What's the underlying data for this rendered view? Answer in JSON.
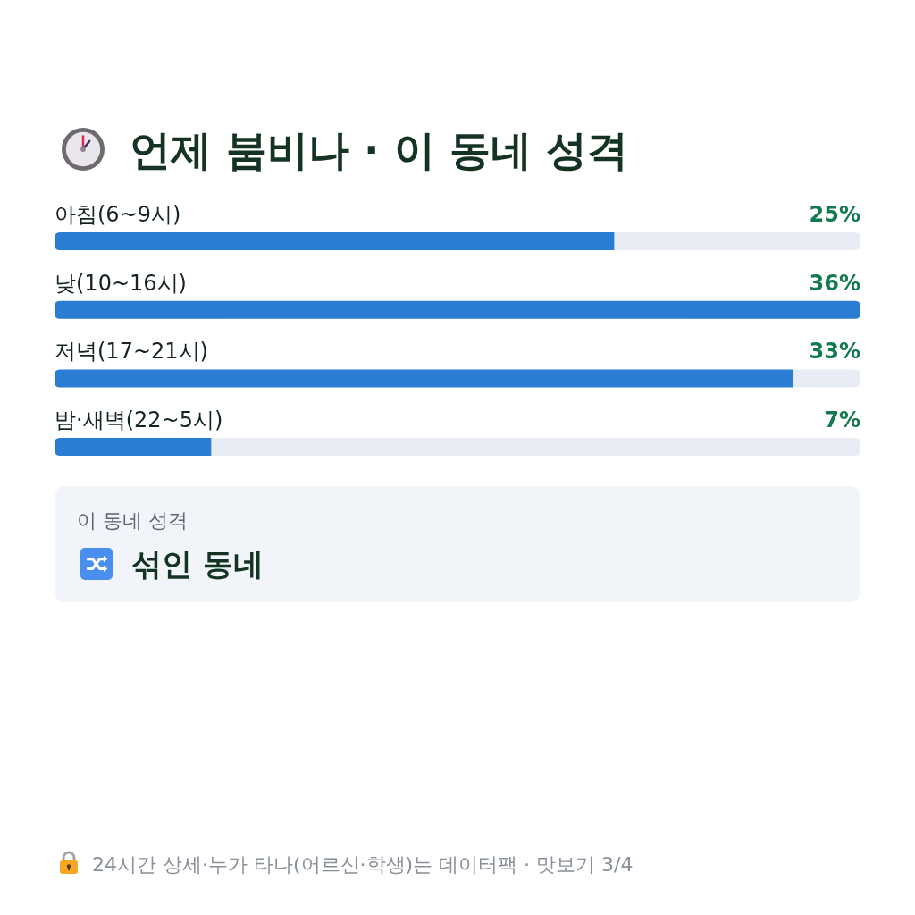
{
  "chart_data": [
    {
      "type": "bar",
      "orientation": "horizontal",
      "title": "언제 붐비나 · 이 동네 성격",
      "categories": [
        "아침(6~9시)",
        "낮(10~16시)",
        "저녁(17~21시)",
        "밤·새벽(22~5시)"
      ],
      "values": [
        25,
        36,
        33,
        7
      ],
      "value_labels": [
        "25%",
        "36%",
        "33%",
        "7%"
      ],
      "color": "#2b7cd3",
      "annotations": [
        "24시간 상세·누가 타나(어르신·학생)는 데이터팩 · 맛보기 3/4"
      ]
    },
    {
      "type": "other",
      "annotations": [
        "이 동네 성격",
        "섞인 동네"
      ]
    }
  ]
}
